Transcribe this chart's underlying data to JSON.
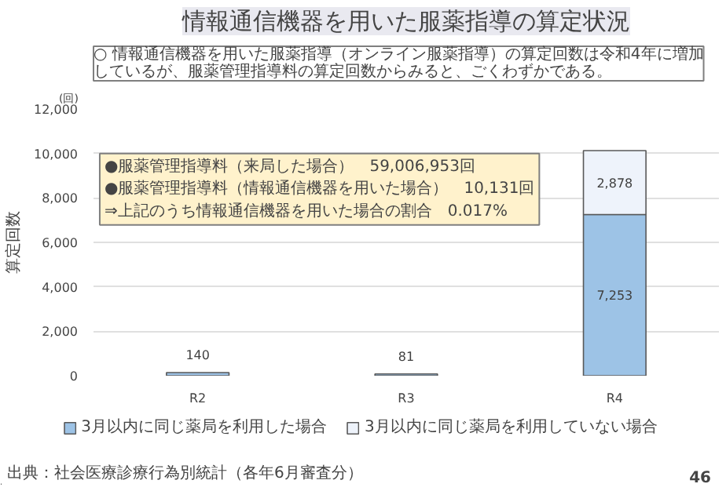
{
  "chart_data": {
    "type": "bar",
    "stacked": true,
    "title": "情報通信機器を用いた服薬指導の算定状況",
    "subtitle": "○ 情報通信機器を用いた服薬指導（オンライン服薬指導）の算定回数は令和4年に増加しているが、服薬管理指導料の算定回数からみると、ごくわずかである。",
    "ylabel": "算定回数",
    "categories": [
      "R2",
      "R3",
      "R4"
    ],
    "series": [
      {
        "name": "3月以内に同じ薬局を利用した場合",
        "color": "#9dc3e6",
        "values": [
          140,
          81,
          7253
        ],
        "value_labels": [
          "140",
          "81",
          "7,253"
        ]
      },
      {
        "name": "3月以内に同じ薬局を利用していない場合",
        "color": "#eef3fb",
        "values": [
          null,
          null,
          2878
        ],
        "value_labels": [
          null,
          null,
          "2,878"
        ]
      }
    ],
    "ylim": [
      0,
      12000
    ],
    "yticks": [
      0,
      {
        "value": 2000,
        "label": "2,000"
      },
      {
        "value": 4000,
        "label": "4,000"
      },
      {
        "value": 6000,
        "label": "6,000"
      },
      {
        "value": 8000,
        "label": "8,000"
      },
      {
        "value": 10000,
        "label": "10,000"
      },
      {
        "value": 12000,
        "label": "12,000"
      }
    ],
    "grid": "y",
    "legend": "bottom",
    "annotations": [
      "(回)",
      "●服薬管理指導料（来局した場合）　59,006,953回",
      "●服薬管理指導料（情報通信機器を用いた場合）　10,131回",
      "⇒上記のうち情報通信機器を用いた場合の割合　0.017%",
      "出典：社会医療診療行為別統計（各年6月審査分）",
      "46"
    ]
  }
}
